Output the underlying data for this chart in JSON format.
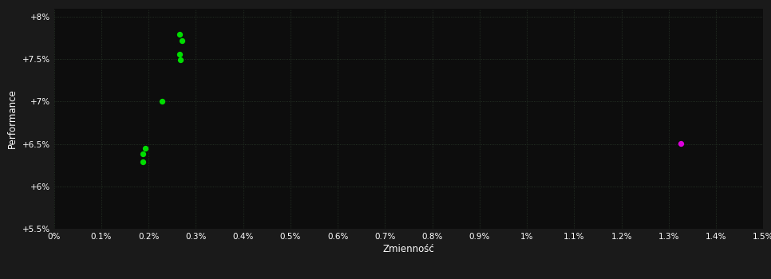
{
  "background_color": "#1a1a1a",
  "plot_bg_color": "#0d0d0d",
  "grid_color": "#2a3a2a",
  "text_color": "#ffffff",
  "xlabel": "Zmienność",
  "ylabel": "Performance",
  "xlim": [
    0.0,
    0.015
  ],
  "ylim": [
    0.055,
    0.081
  ],
  "xtick_labels": [
    "0%",
    "0.1%",
    "0.2%",
    "0.3%",
    "0.4%",
    "0.5%",
    "0.6%",
    "0.7%",
    "0.8%",
    "0.9%",
    "1%",
    "1.1%",
    "1.2%",
    "1.3%",
    "1.4%",
    "1.5%"
  ],
  "xtick_values": [
    0.0,
    0.001,
    0.002,
    0.003,
    0.004,
    0.005,
    0.006,
    0.007,
    0.008,
    0.009,
    0.01,
    0.011,
    0.012,
    0.013,
    0.014,
    0.015
  ],
  "ytick_labels": [
    "+5.5%",
    "+6%",
    "+6.5%",
    "+7%",
    "+7.5%",
    "+8%"
  ],
  "ytick_values": [
    0.055,
    0.06,
    0.065,
    0.07,
    0.075,
    0.08
  ],
  "green_points": [
    [
      0.00265,
      0.0779
    ],
    [
      0.0027,
      0.0772
    ],
    [
      0.00265,
      0.0756
    ],
    [
      0.00268,
      0.0749
    ],
    [
      0.00228,
      0.07
    ],
    [
      0.00193,
      0.0645
    ],
    [
      0.00188,
      0.0638
    ],
    [
      0.00188,
      0.0629
    ]
  ],
  "magenta_points": [
    [
      0.01325,
      0.0651
    ]
  ],
  "point_size": 18
}
